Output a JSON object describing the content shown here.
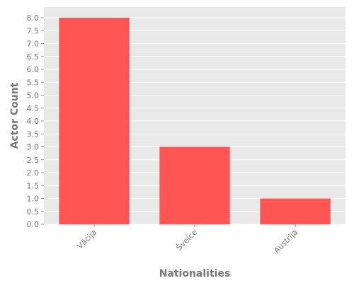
{
  "chart_data": {
    "type": "bar",
    "categories": [
      "Vācija",
      "Šveice",
      "Austrija"
    ],
    "values": [
      8,
      3,
      1
    ],
    "xlabel": "Nationalities",
    "ylabel": "Actor Count",
    "ylim": [
      0,
      8.0
    ],
    "yticks": [
      "0.0",
      "0.5",
      "1.0",
      "1.5",
      "2.0",
      "2.5",
      "3.0",
      "3.5",
      "4.0",
      "4.5",
      "5.0",
      "5.5",
      "6.0",
      "6.5",
      "7.0",
      "7.5",
      "8.0"
    ],
    "grid": true,
    "legend": "none",
    "colors": {
      "bar": "#ff5555",
      "plot_background": "#e9e9e9",
      "grid": "#ffffff",
      "text": "#777777"
    }
  }
}
